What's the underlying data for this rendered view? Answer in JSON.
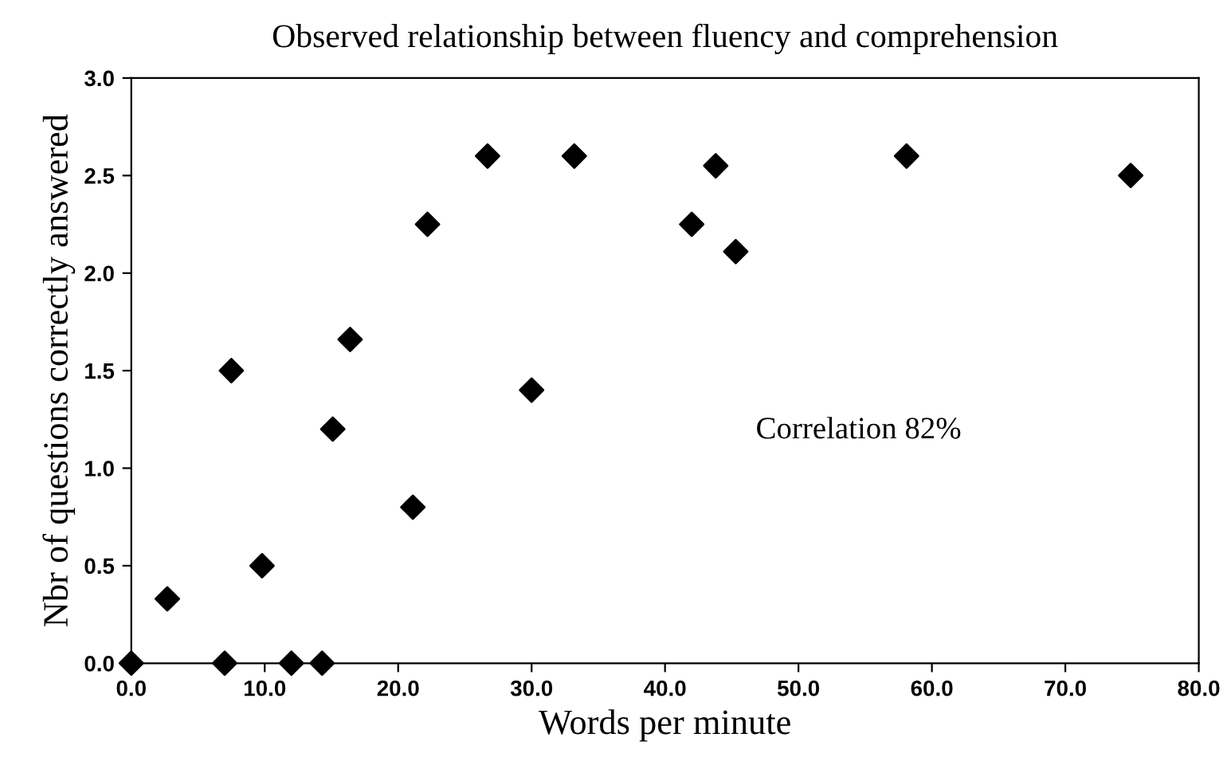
{
  "chart_data": {
    "type": "scatter",
    "title": "Observed relationship between fluency and comprehension",
    "xlabel": "Words per minute",
    "ylabel": "Nbr of questions correctly answered",
    "x": [
      0,
      2.7,
      7.0,
      7.5,
      9.8,
      12.0,
      14.3,
      15.1,
      16.4,
      21.1,
      22.2,
      26.7,
      30.0,
      33.2,
      42.0,
      43.8,
      45.3,
      58.1,
      74.9
    ],
    "series": [
      {
        "color": "#000000",
        "values": [
          0,
          0.33,
          0,
          1.5,
          0.5,
          0,
          0,
          1.2,
          1.66,
          0.8,
          2.25,
          2.6,
          1.4,
          2.6,
          2.25,
          2.55,
          2.11,
          2.6,
          2.5
        ]
      }
    ],
    "marker": "diamond",
    "grid": false,
    "legend": false,
    "xlim": [
      0,
      80
    ],
    "ylim": [
      0,
      3
    ],
    "xticks": [
      {
        "value": 0,
        "label": "0.0"
      },
      {
        "value": 10,
        "label": "10.0"
      },
      {
        "value": 20,
        "label": "20.0"
      },
      {
        "value": 30,
        "label": "30.0"
      },
      {
        "value": 40,
        "label": "40.0"
      },
      {
        "value": 50,
        "label": "50.0"
      },
      {
        "value": 60,
        "label": "60.0"
      },
      {
        "value": 70,
        "label": "70.0"
      },
      {
        "value": 80,
        "label": "80.0"
      }
    ],
    "yticks": [
      {
        "value": 0,
        "label": "0.0"
      },
      {
        "value": 0.5,
        "label": "0.5"
      },
      {
        "value": 1,
        "label": "1.0"
      },
      {
        "value": 1.5,
        "label": "1.5"
      },
      {
        "value": 2,
        "label": "2.0"
      },
      {
        "value": 2.5,
        "label": "2.5"
      },
      {
        "value": 3,
        "label": "3.0"
      }
    ],
    "annotations": [
      "Correlation 82%"
    ]
  }
}
